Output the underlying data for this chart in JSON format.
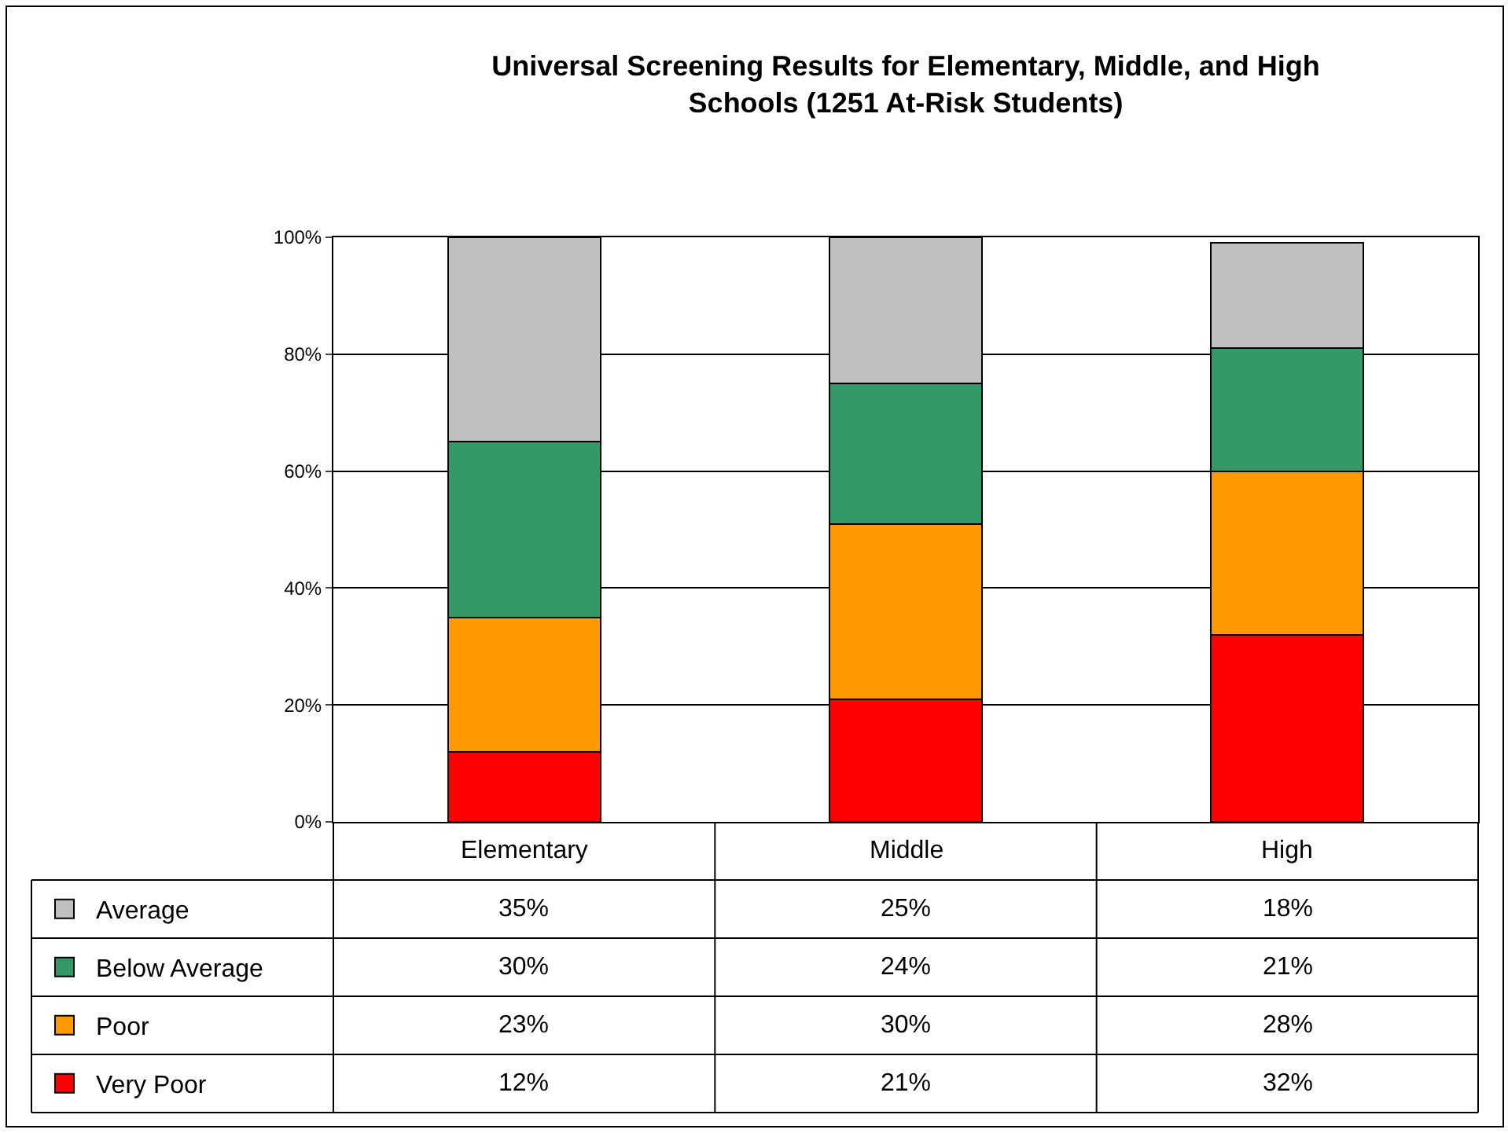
{
  "chart_data": {
    "type": "bar",
    "stacked": true,
    "title": "Universal Screening Results for Elementary, Middle, and High\nSchools (1251 At-Risk Students)",
    "categories": [
      "Elementary",
      "Middle",
      "High"
    ],
    "series": [
      {
        "name": "Very Poor",
        "color": "#ff0000",
        "values": [
          12,
          21,
          32
        ],
        "value_labels": [
          "12%",
          "21%",
          "32%"
        ]
      },
      {
        "name": "Poor",
        "color": "#ff9900",
        "values": [
          23,
          30,
          28
        ],
        "value_labels": [
          "23%",
          "30%",
          "28%"
        ]
      },
      {
        "name": "Below Average",
        "color": "#339966",
        "values": [
          30,
          24,
          21
        ],
        "value_labels": [
          "30%",
          "24%",
          "21%"
        ]
      },
      {
        "name": "Average",
        "color": "#c0c0c0",
        "values": [
          35,
          25,
          18
        ],
        "value_labels": [
          "35%",
          "25%",
          "18%"
        ]
      }
    ],
    "ylim": [
      0,
      100
    ],
    "yticks": [
      {
        "value": 0,
        "label": "0%"
      },
      {
        "value": 20,
        "label": "20%"
      },
      {
        "value": 40,
        "label": "40%"
      },
      {
        "value": 60,
        "label": "60%"
      },
      {
        "value": 80,
        "label": "80%"
      },
      {
        "value": 100,
        "label": "100%"
      }
    ],
    "grid": "y",
    "legend": "bottom left"
  }
}
